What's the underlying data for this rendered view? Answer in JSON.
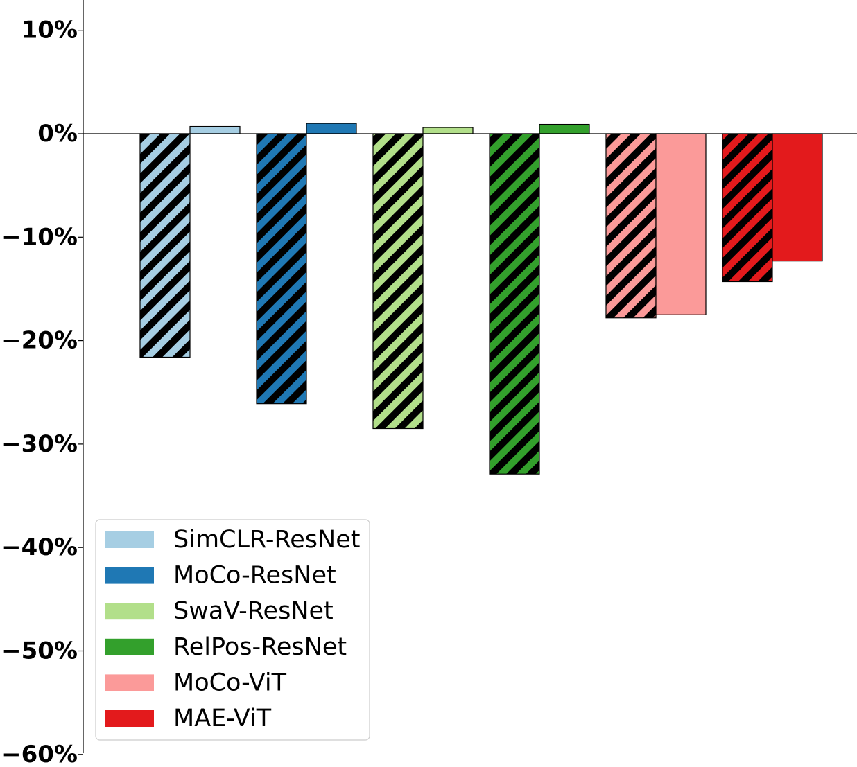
{
  "chart_data": {
    "type": "bar",
    "title": "",
    "xlabel": "",
    "ylabel": "",
    "ylim": [
      -60,
      13
    ],
    "yticks": [
      10,
      0,
      -10,
      -20,
      -30,
      -40,
      -50,
      -60
    ],
    "ytick_labels": [
      "10%",
      "0%",
      "−10%",
      "−20%",
      "−30%",
      "−40%",
      "−50%",
      "−60%"
    ],
    "grid": false,
    "legend_position": "bottom-left",
    "series": [
      {
        "name": "SimCLR-ResNet",
        "color": "#a6cee3",
        "values": [
          -21.6,
          0.7
        ]
      },
      {
        "name": "MoCo-ResNet",
        "color": "#1f78b4",
        "values": [
          -26.1,
          1.0
        ]
      },
      {
        "name": "SwaV-ResNet",
        "color": "#b2df8a",
        "values": [
          -28.5,
          0.6
        ]
      },
      {
        "name": "RelPos-ResNet",
        "color": "#33a02c",
        "values": [
          -32.9,
          0.9
        ]
      },
      {
        "name": "MoCo-ViT",
        "color": "#fb9a99",
        "values": [
          -17.8,
          -17.5
        ]
      },
      {
        "name": "MAE-ViT",
        "color": "#e31a1c",
        "values": [
          -14.3,
          -12.3
        ]
      }
    ],
    "bar_styles": [
      "hatched",
      "solid"
    ]
  }
}
